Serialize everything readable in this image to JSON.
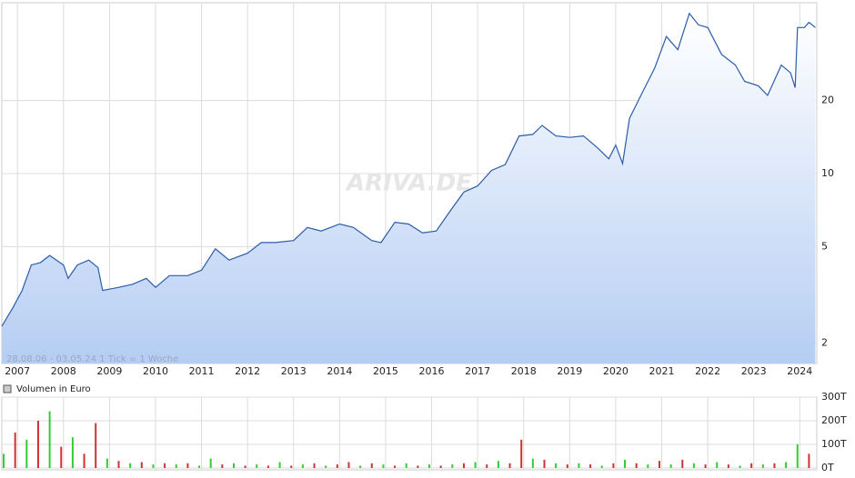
{
  "chart_data": [
    {
      "type": "line",
      "log_scale": true,
      "grid": true,
      "color": "#2a5caa",
      "annotations": [
        "28.08.06 - 03.05.24   1 Tick = 1 Woche",
        "ARIVA.DE"
      ],
      "x": [
        2006.66,
        2006.9,
        2007.1,
        2007.3,
        2007.5,
        2007.7,
        2008.0,
        2008.1,
        2008.3,
        2008.55,
        2008.75,
        2008.85,
        2009.2,
        2009.5,
        2009.8,
        2010.0,
        2010.3,
        2010.7,
        2011.0,
        2011.3,
        2011.6,
        2012.0,
        2012.3,
        2012.6,
        2013.0,
        2013.3,
        2013.6,
        2014.0,
        2014.3,
        2014.7,
        2014.9,
        2015.2,
        2015.5,
        2015.8,
        2016.1,
        2016.4,
        2016.7,
        2017.0,
        2017.3,
        2017.6,
        2017.9,
        2018.2,
        2018.4,
        2018.7,
        2019.0,
        2019.3,
        2019.6,
        2019.85,
        2020.0,
        2020.15,
        2020.3,
        2020.6,
        2020.85,
        2021.1,
        2021.35,
        2021.6,
        2021.8,
        2022.0,
        2022.3,
        2022.6,
        2022.8,
        2023.1,
        2023.3,
        2023.6,
        2023.8,
        2023.9,
        2023.95,
        2024.1,
        2024.2,
        2024.34
      ],
      "values": [
        2.35,
        2.8,
        3.3,
        4.2,
        4.3,
        4.6,
        4.2,
        3.7,
        4.2,
        4.4,
        4.1,
        3.3,
        3.4,
        3.5,
        3.7,
        3.4,
        3.8,
        3.8,
        4.0,
        4.9,
        4.4,
        4.7,
        5.2,
        5.2,
        5.3,
        6.0,
        5.8,
        6.2,
        6.0,
        5.3,
        5.2,
        6.3,
        6.2,
        5.7,
        5.8,
        7.0,
        8.4,
        8.9,
        10.3,
        10.9,
        14.3,
        14.5,
        15.8,
        14.3,
        14.1,
        14.3,
        12.8,
        11.5,
        13.1,
        11.0,
        16.9,
        22.0,
        27.3,
        36.7,
        32.4,
        45.7,
        41.0,
        40.0,
        31.0,
        28.0,
        24.0,
        23.0,
        21.0,
        28.0,
        26.0,
        22.6,
        40,
        40,
        42,
        40
      ],
      "xlim": [
        2006.66,
        2024.37
      ],
      "xticks": [
        2007,
        2008,
        2009,
        2010,
        2011,
        2012,
        2013,
        2014,
        2015,
        2016,
        2017,
        2018,
        2019,
        2020,
        2021,
        2022,
        2023,
        2024
      ],
      "ylim": [
        1.65,
        50.6
      ],
      "yticks": [
        2,
        5,
        10,
        20
      ]
    },
    {
      "type": "bar",
      "grid": true,
      "series": [
        {
          "name": "Volumen in Euro",
          "color": "#888888",
          "colors": [
            "#3c3",
            "#c33",
            "#3c3",
            "#c33",
            "#3c3",
            "#c33",
            "#3c3",
            "#c33",
            "#c33",
            "#3c3",
            "#c33",
            "#3c3",
            "#c33",
            "#3c3",
            "#c33",
            "#3c3",
            "#c33",
            "#3c3",
            "#3c3",
            "#c33",
            "#3c3",
            "#c33",
            "#3c3",
            "#c33",
            "#3c3",
            "#c33",
            "#3c3",
            "#c33",
            "#3c3",
            "#c33",
            "#c33",
            "#3c3",
            "#c33",
            "#3c3",
            "#c33",
            "#3c3",
            "#c33",
            "#3c3",
            "#c33",
            "#3c3",
            "#c33",
            "#3c3",
            "#c33",
            "#3c3",
            "#c33",
            "#c33",
            "#3c3",
            "#c33",
            "#3c3",
            "#c33",
            "#3c3",
            "#c33",
            "#3c3",
            "#c33",
            "#3c3",
            "#c33",
            "#3c3",
            "#c33",
            "#3c3",
            "#c33",
            "#3c3",
            "#c33",
            "#3c3",
            "#c33",
            "#3c3",
            "#c33",
            "#3c3",
            "#c33",
            "#3c3",
            "#3c3",
            "#c33"
          ],
          "x": [
            2006.7,
            2006.95,
            2007.2,
            2007.45,
            2007.7,
            2007.95,
            2008.2,
            2008.45,
            2008.7,
            2008.95,
            2009.2,
            2009.45,
            2009.7,
            2009.95,
            2010.2,
            2010.45,
            2010.7,
            2010.95,
            2011.2,
            2011.45,
            2011.7,
            2011.95,
            2012.2,
            2012.45,
            2012.7,
            2012.95,
            2013.2,
            2013.45,
            2013.7,
            2013.95,
            2014.2,
            2014.45,
            2014.7,
            2014.95,
            2015.2,
            2015.45,
            2015.7,
            2015.95,
            2016.2,
            2016.45,
            2016.7,
            2016.95,
            2017.2,
            2017.45,
            2017.7,
            2017.95,
            2018.2,
            2018.45,
            2018.7,
            2018.95,
            2019.2,
            2019.45,
            2019.7,
            2019.95,
            2020.2,
            2020.45,
            2020.7,
            2020.95,
            2021.2,
            2021.45,
            2021.7,
            2021.95,
            2022.2,
            2022.45,
            2022.7,
            2022.95,
            2023.2,
            2023.45,
            2023.7,
            2023.95,
            2024.2
          ],
          "values": [
            60,
            150,
            120,
            200,
            240,
            90,
            130,
            60,
            190,
            40,
            30,
            20,
            25,
            15,
            20,
            15,
            20,
            10,
            40,
            15,
            20,
            10,
            15,
            10,
            25,
            10,
            15,
            20,
            10,
            15,
            25,
            10,
            20,
            15,
            10,
            20,
            10,
            15,
            10,
            15,
            20,
            25,
            15,
            30,
            20,
            120,
            40,
            35,
            20,
            15,
            20,
            15,
            10,
            20,
            35,
            20,
            15,
            30,
            15,
            35,
            20,
            15,
            25,
            15,
            10,
            20,
            15,
            20,
            25,
            100,
            60
          ]
        }
      ],
      "ylim": [
        0,
        300
      ],
      "yticks": [
        {
          "value": 0,
          "label": "0T"
        },
        {
          "value": 100,
          "label": "100T"
        },
        {
          "value": 200,
          "label": "200T"
        },
        {
          "value": 300,
          "label": "300T"
        }
      ]
    }
  ]
}
